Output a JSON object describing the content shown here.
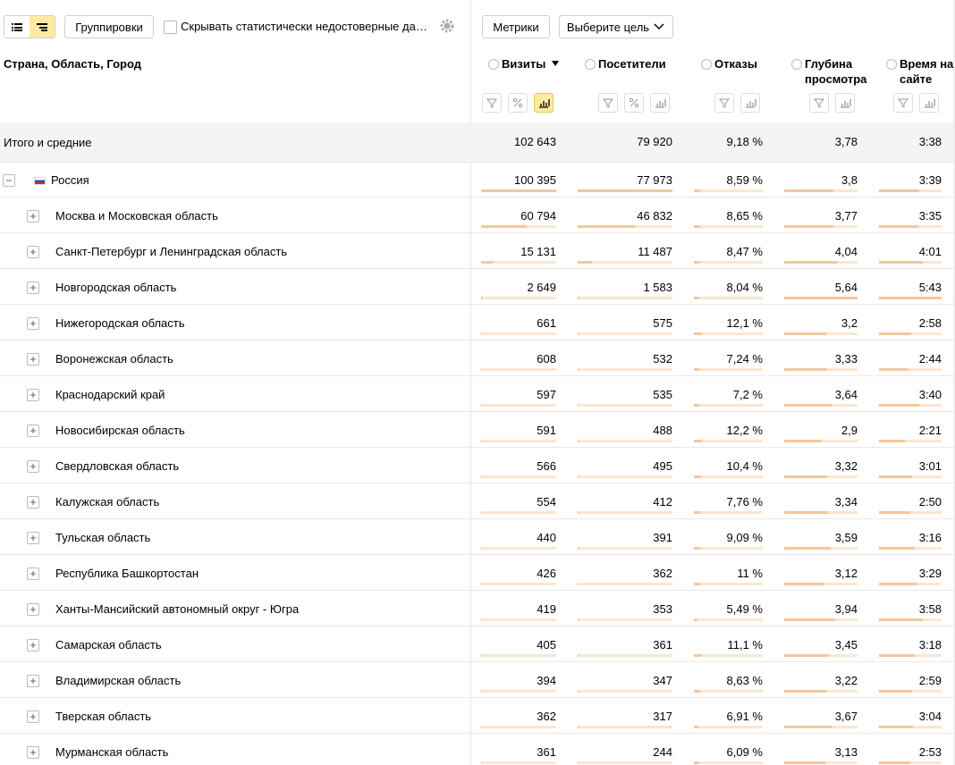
{
  "toolbar": {
    "groupings": "Группировки",
    "hide_checkbox": "Скрывать статистически недостоверные да…",
    "metrics": "Метрики",
    "goal": "Выберите цель"
  },
  "table": {
    "dimension_header": "Страна, Область, Город",
    "columns": [
      "Визиты",
      "Посетители",
      "Отказы",
      "Глубина просмотра",
      "Время на сайте"
    ],
    "total": {
      "label": "Итого и средние",
      "values": [
        "102 643",
        "79 920",
        "9,18 %",
        "3,78",
        "3:38"
      ]
    },
    "rows": [
      {
        "label": "Россия",
        "values": [
          "100 395",
          "77 973",
          "8,59 %",
          "3,8",
          "3:39"
        ]
      },
      {
        "label": "Москва и Московская область",
        "values": [
          "60 794",
          "46 832",
          "8,65 %",
          "3,77",
          "3:35"
        ]
      },
      {
        "label": "Санкт-Петербург и Ленинградская область",
        "values": [
          "15 131",
          "11 487",
          "8,47 %",
          "4,04",
          "4:01"
        ]
      },
      {
        "label": "Новгородская область",
        "values": [
          "2 649",
          "1 583",
          "8,04 %",
          "5,64",
          "5:43"
        ]
      },
      {
        "label": "Нижегородская область",
        "values": [
          "661",
          "575",
          "12,1 %",
          "3,2",
          "2:58"
        ]
      },
      {
        "label": "Воронежская область",
        "values": [
          "608",
          "532",
          "7,24 %",
          "3,33",
          "2:44"
        ]
      },
      {
        "label": "Краснодарский край",
        "values": [
          "597",
          "535",
          "7,2 %",
          "3,64",
          "3:40"
        ]
      },
      {
        "label": "Новосибирская область",
        "values": [
          "591",
          "488",
          "12,2 %",
          "2,9",
          "2:21"
        ]
      },
      {
        "label": "Свердловская область",
        "values": [
          "566",
          "495",
          "10,4 %",
          "3,32",
          "3:01"
        ]
      },
      {
        "label": "Калужская область",
        "values": [
          "554",
          "412",
          "7,76 %",
          "3,34",
          "2:50"
        ]
      },
      {
        "label": "Тульская область",
        "values": [
          "440",
          "391",
          "9,09 %",
          "3,59",
          "3:16"
        ]
      },
      {
        "label": "Республика Башкортостан",
        "values": [
          "426",
          "362",
          "11 %",
          "3,12",
          "3:29"
        ]
      },
      {
        "label": "Ханты-Мансийский автономный округ - Югра",
        "values": [
          "419",
          "353",
          "5,49 %",
          "3,94",
          "3:58"
        ]
      },
      {
        "label": "Самарская область",
        "values": [
          "405",
          "361",
          "11,1 %",
          "3,45",
          "3:18"
        ]
      },
      {
        "label": "Владимирская область",
        "values": [
          "394",
          "347",
          "8,63 %",
          "3,22",
          "2:59"
        ]
      },
      {
        "label": "Тверская область",
        "values": [
          "362",
          "317",
          "6,91 %",
          "3,67",
          "3:04"
        ]
      },
      {
        "label": "Мурманская область",
        "values": [
          "361",
          "244",
          "6,09 %",
          "3,13",
          "2:53"
        ]
      }
    ]
  }
}
